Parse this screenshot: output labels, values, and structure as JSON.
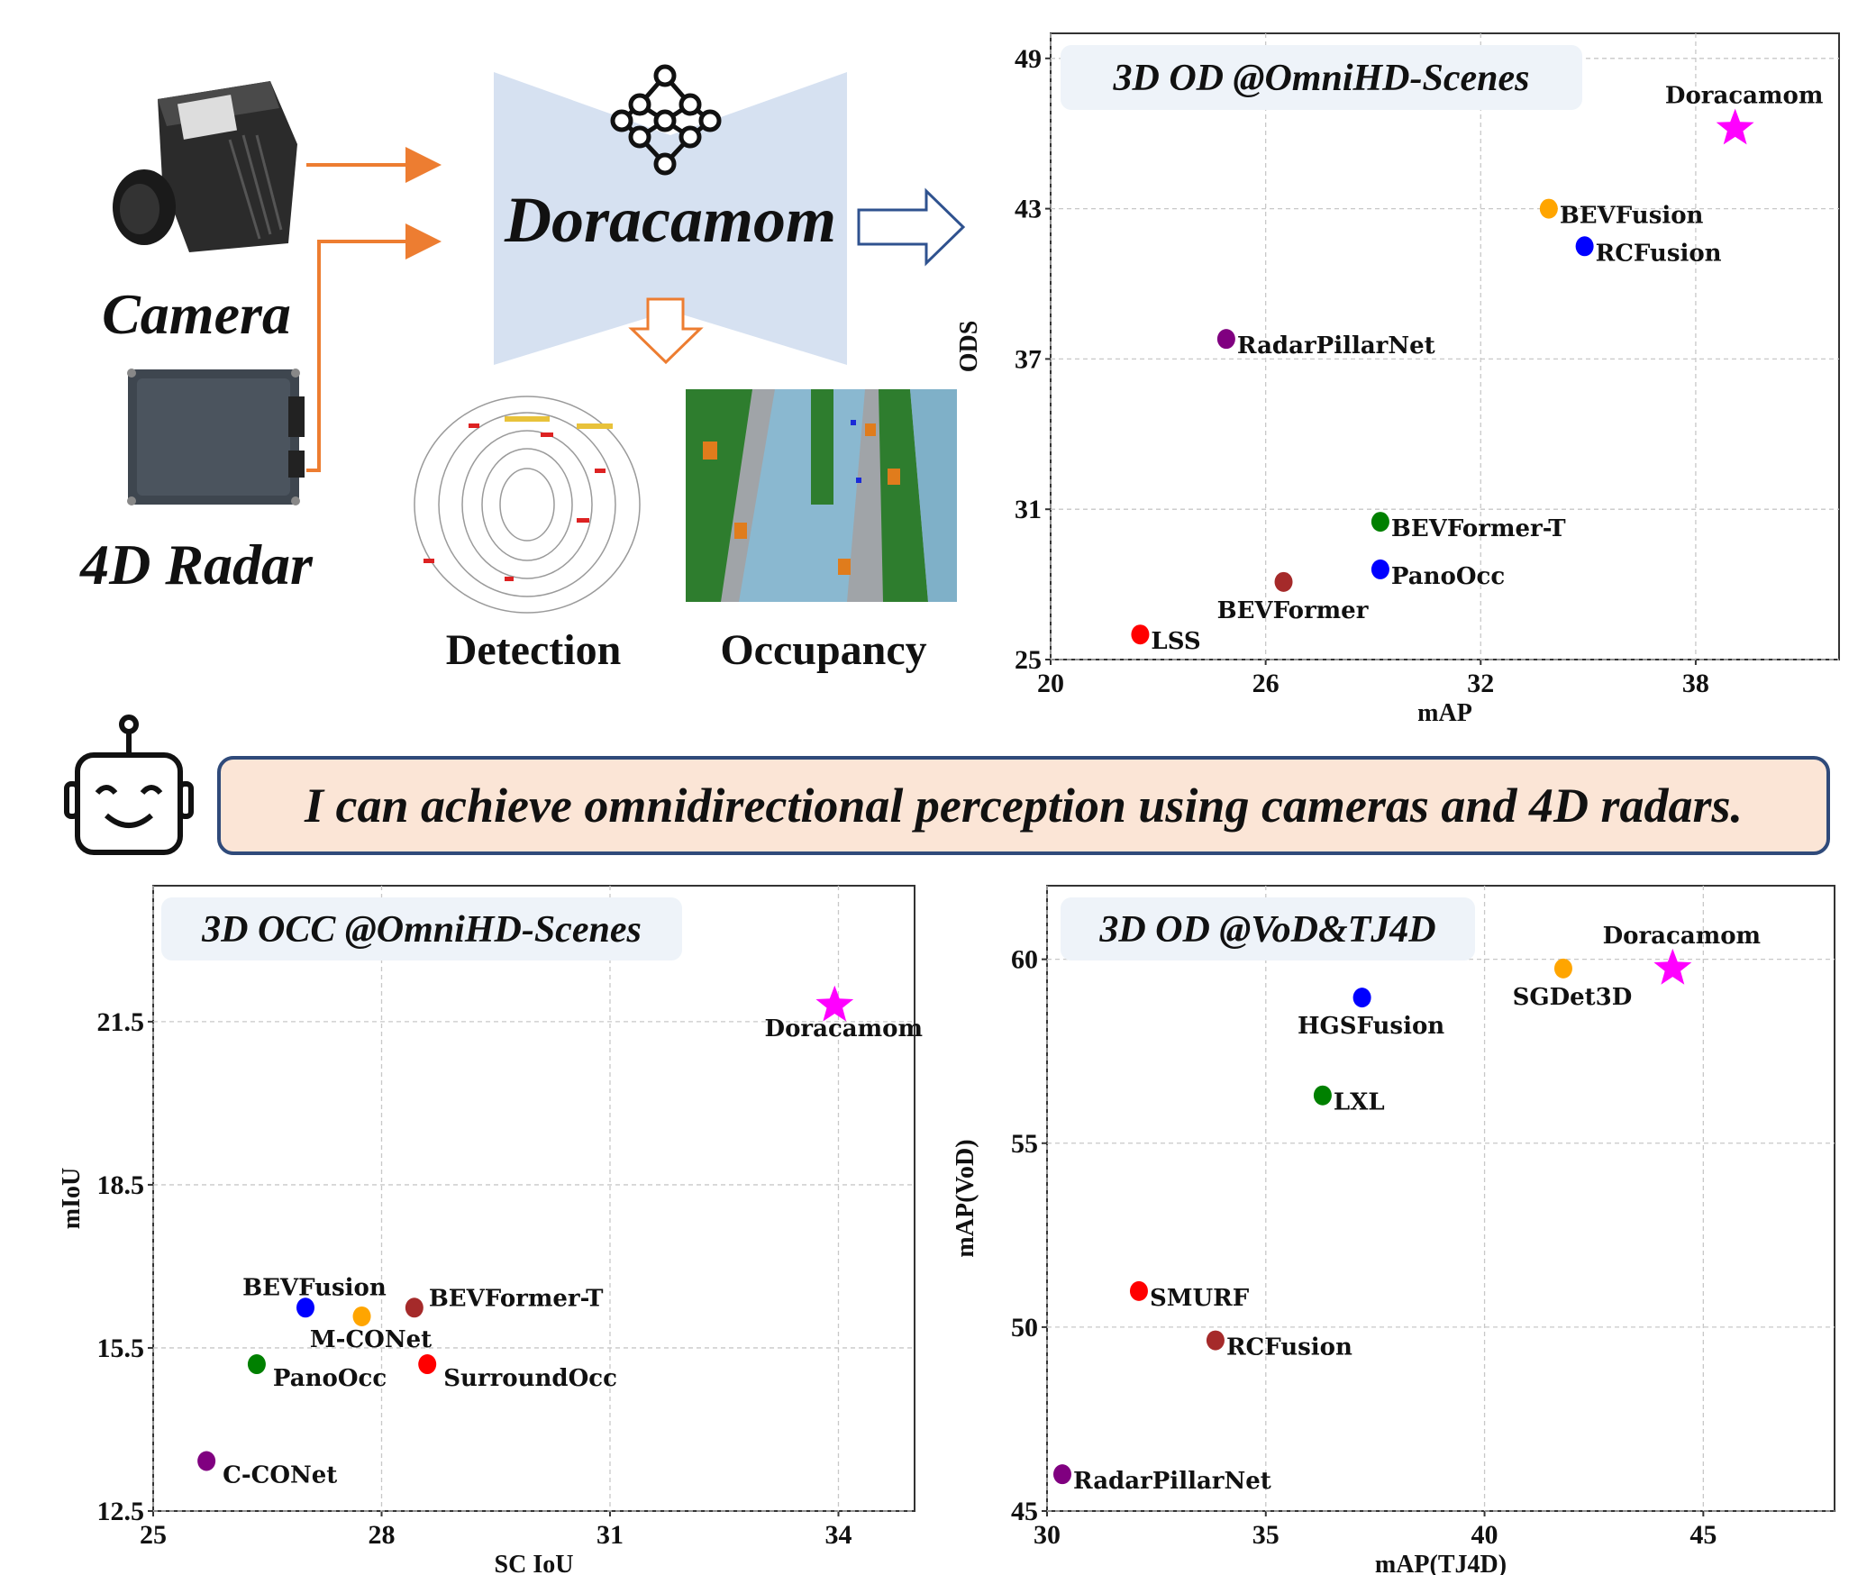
{
  "diagram": {
    "inputs": [
      {
        "label": "Camera",
        "icon": "camera-device-icon"
      },
      {
        "label": "4D Radar",
        "icon": "radar-device-icon"
      }
    ],
    "model_name": "Doracamom",
    "model_icon": "neural-network-icon",
    "outputs": [
      {
        "label": "Detection"
      },
      {
        "label": "Occupancy"
      }
    ],
    "colors": {
      "arrow": "#ed7d31",
      "bowtie": "#d6e1f1",
      "hollow_arrow": "#2f528f",
      "banner_fill": "#fbe5d6",
      "banner_border": "#2f4a7a",
      "title_box": "#eef3f9"
    }
  },
  "banner": {
    "icon": "robot-icon",
    "text": "I can achieve omnidirectional perception using cameras and 4D radars."
  },
  "chart_data": [
    {
      "type": "scatter",
      "title": "3D OD @OmniHD-Scenes",
      "xlabel": "mAP",
      "ylabel": "ODS",
      "xlim": [
        20,
        42
      ],
      "ylim": [
        25,
        50
      ],
      "xticks": [
        "20",
        "26",
        "32",
        "38"
      ],
      "xtick_values": [
        20,
        26,
        32,
        38
      ],
      "yticks": [
        "25",
        "31",
        "37",
        "43",
        "49"
      ],
      "ytick_values": [
        25,
        31,
        37,
        43,
        49
      ],
      "grid": true,
      "points": [
        {
          "name": "Doracamom",
          "x": 39.1,
          "y": 46.2,
          "color": "#ff00ff",
          "marker": "star",
          "label_pos": "above"
        },
        {
          "name": "BEVFusion",
          "x": 33.9,
          "y": 43.0,
          "color": "#ffa500",
          "marker": "circle",
          "label_pos": "right"
        },
        {
          "name": "RCFusion",
          "x": 34.9,
          "y": 41.5,
          "color": "#0000ff",
          "marker": "circle",
          "label_pos": "right"
        },
        {
          "name": "RadarPillarNet",
          "x": 24.9,
          "y": 37.8,
          "color": "#800080",
          "marker": "circle",
          "label_pos": "right"
        },
        {
          "name": "BEVFormer-T",
          "x": 29.2,
          "y": 30.5,
          "color": "#008000",
          "marker": "circle",
          "label_pos": "right"
        },
        {
          "name": "PanoOcc",
          "x": 29.2,
          "y": 28.6,
          "color": "#0000ff",
          "marker": "circle",
          "label_pos": "right"
        },
        {
          "name": "BEVFormer",
          "x": 26.5,
          "y": 28.1,
          "color": "#a52a2a",
          "marker": "circle",
          "label_pos": "below"
        },
        {
          "name": "LSS",
          "x": 22.5,
          "y": 26.0,
          "color": "#ff0000",
          "marker": "circle",
          "label_pos": "right"
        }
      ]
    },
    {
      "type": "scatter",
      "title": "3D OCC @OmniHD-Scenes",
      "xlabel": "SC IoU",
      "ylabel": "mIoU",
      "xlim": [
        25,
        35
      ],
      "ylim": [
        12.5,
        24
      ],
      "xticks": [
        "25",
        "28",
        "31",
        "34"
      ],
      "xtick_values": [
        25,
        28,
        31,
        34
      ],
      "yticks": [
        "12.5",
        "15.5",
        "18.5",
        "21.5"
      ],
      "ytick_values": [
        12.5,
        15.5,
        18.5,
        21.5
      ],
      "grid": true,
      "points": [
        {
          "name": "Doracamom",
          "x": 33.95,
          "y": 21.8,
          "color": "#ff00ff",
          "marker": "star",
          "label_pos": "below"
        },
        {
          "name": "BEVFusion",
          "x": 27.0,
          "y": 16.24,
          "color": "#0000ff",
          "marker": "circle",
          "label_pos": "above"
        },
        {
          "name": "M-CONet",
          "x": 27.74,
          "y": 16.08,
          "color": "#ffa500",
          "marker": "circle",
          "label_pos": "below"
        },
        {
          "name": "BEVFormer-T",
          "x": 28.43,
          "y": 16.24,
          "color": "#a52a2a",
          "marker": "circle",
          "label_pos": "right-up"
        },
        {
          "name": "PanoOcc",
          "x": 26.36,
          "y": 15.2,
          "color": "#008000",
          "marker": "circle",
          "label_pos": "right-down"
        },
        {
          "name": "SurroundOcc",
          "x": 28.6,
          "y": 15.2,
          "color": "#ff0000",
          "marker": "circle",
          "label_pos": "right-down"
        },
        {
          "name": "C-CONet",
          "x": 25.7,
          "y": 13.42,
          "color": "#800080",
          "marker": "circle",
          "label_pos": "right-down"
        }
      ]
    },
    {
      "type": "scatter",
      "title": "3D OD @VoD&TJ4D",
      "xlabel": "mAP(TJ4D)",
      "ylabel": "mAP(VoD)",
      "xlim": [
        30,
        48
      ],
      "ylim": [
        45,
        62
      ],
      "xticks": [
        "30",
        "35",
        "40",
        "45"
      ],
      "xtick_values": [
        30,
        35,
        40,
        45
      ],
      "yticks": [
        "45",
        "50",
        "55",
        "60"
      ],
      "ytick_values": [
        45,
        50,
        55,
        60
      ],
      "grid": true,
      "points": [
        {
          "name": "Doracamom",
          "x": 44.3,
          "y": 59.75,
          "color": "#ff00ff",
          "marker": "star",
          "label_pos": "above"
        },
        {
          "name": "SGDet3D",
          "x": 41.8,
          "y": 59.75,
          "color": "#ffa500",
          "marker": "circle",
          "label_pos": "below"
        },
        {
          "name": "HGSFusion",
          "x": 37.2,
          "y": 58.96,
          "color": "#0000ff",
          "marker": "circle",
          "label_pos": "below"
        },
        {
          "name": "LXL",
          "x": 36.3,
          "y": 56.3,
          "color": "#008000",
          "marker": "circle",
          "label_pos": "right"
        },
        {
          "name": "SMURF",
          "x": 32.1,
          "y": 50.98,
          "color": "#ff0000",
          "marker": "circle",
          "label_pos": "right"
        },
        {
          "name": "RCFusion",
          "x": 33.85,
          "y": 49.64,
          "color": "#a52a2a",
          "marker": "circle",
          "label_pos": "right"
        },
        {
          "name": "RadarPillarNet",
          "x": 30.35,
          "y": 46.0,
          "color": "#800080",
          "marker": "circle",
          "label_pos": "right"
        }
      ]
    }
  ]
}
